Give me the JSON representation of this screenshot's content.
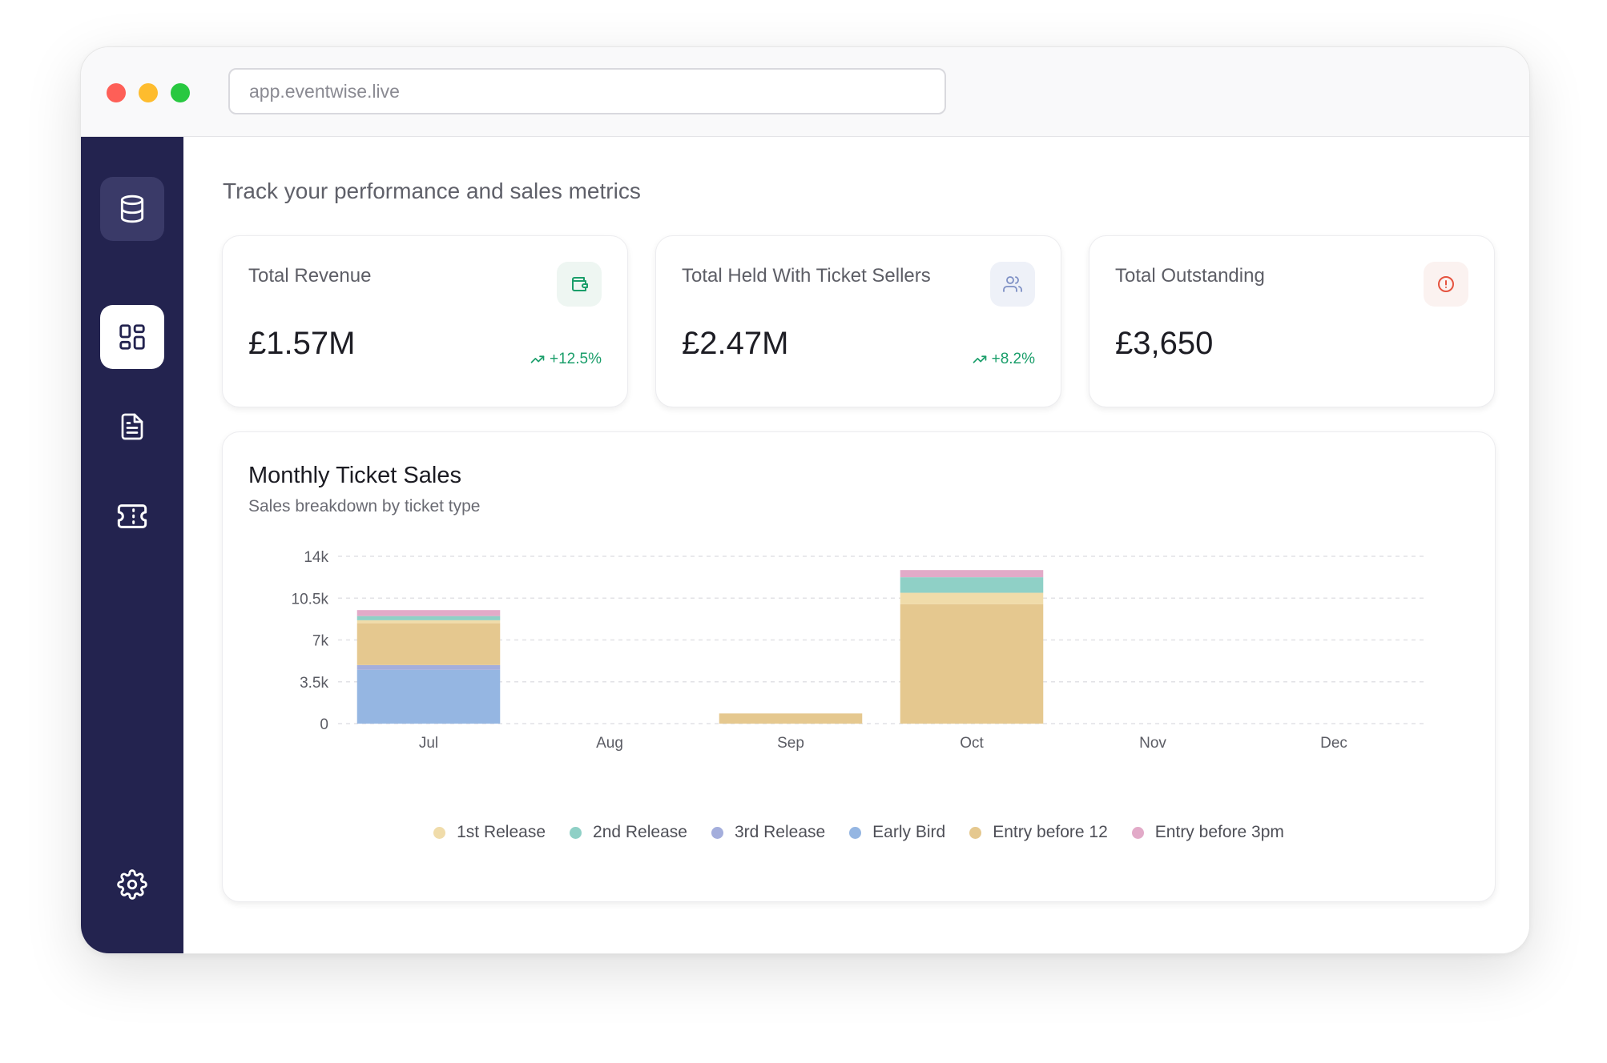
{
  "browser": {
    "url": "app.eventwise.live"
  },
  "page": {
    "subtitle": "Track your performance and sales metrics"
  },
  "cards": [
    {
      "label": "Total Revenue",
      "value": "£1.57M",
      "change": "+12.5%",
      "icon": "wallet-icon"
    },
    {
      "label": "Total Held With Ticket Sellers",
      "value": "£2.47M",
      "change": "+8.2%",
      "icon": "users-icon"
    },
    {
      "label": "Total Outstanding",
      "value": "£3,650",
      "change": "",
      "icon": "alert-circle-icon"
    }
  ],
  "colors": {
    "sidebar": "#23234f",
    "positive": "#1a9e6a",
    "alert": "#e5533f"
  },
  "chart_data": {
    "type": "bar",
    "stacked": true,
    "title": "Monthly Ticket Sales",
    "subtitle": "Sales breakdown by ticket type",
    "categories": [
      "Jul",
      "Aug",
      "Sep",
      "Oct",
      "Nov",
      "Dec"
    ],
    "ylim": [
      0,
      14000
    ],
    "yticks": [
      0,
      3500,
      7000,
      10500,
      14000
    ],
    "ytick_labels": [
      "0",
      "3.5k",
      "7k",
      "10.5k",
      "14k"
    ],
    "grid": true,
    "legend_position": "bottom",
    "series": [
      {
        "name": "1st Release",
        "color": "#f0dcaa",
        "values": [
          250,
          0,
          0,
          950,
          0,
          0
        ]
      },
      {
        "name": "2nd Release",
        "color": "#8fd0c6",
        "values": [
          350,
          0,
          0,
          1300,
          0,
          0
        ]
      },
      {
        "name": "3rd Release",
        "color": "#a4aedc",
        "values": [
          400,
          0,
          0,
          0,
          0,
          0
        ]
      },
      {
        "name": "Early Bird",
        "color": "#95b6e2",
        "values": [
          4500,
          0,
          0,
          0,
          0,
          0
        ]
      },
      {
        "name": "Entry before 12",
        "color": "#e5c88f",
        "values": [
          3500,
          0,
          850,
          10000,
          0,
          0
        ]
      },
      {
        "name": "Entry before 3pm",
        "color": "#e2aac8",
        "values": [
          500,
          0,
          0,
          600,
          0,
          0
        ]
      }
    ],
    "stack_order": [
      "Early Bird",
      "3rd Release",
      "Entry before 12",
      "1st Release",
      "2nd Release",
      "Entry before 3pm"
    ]
  }
}
